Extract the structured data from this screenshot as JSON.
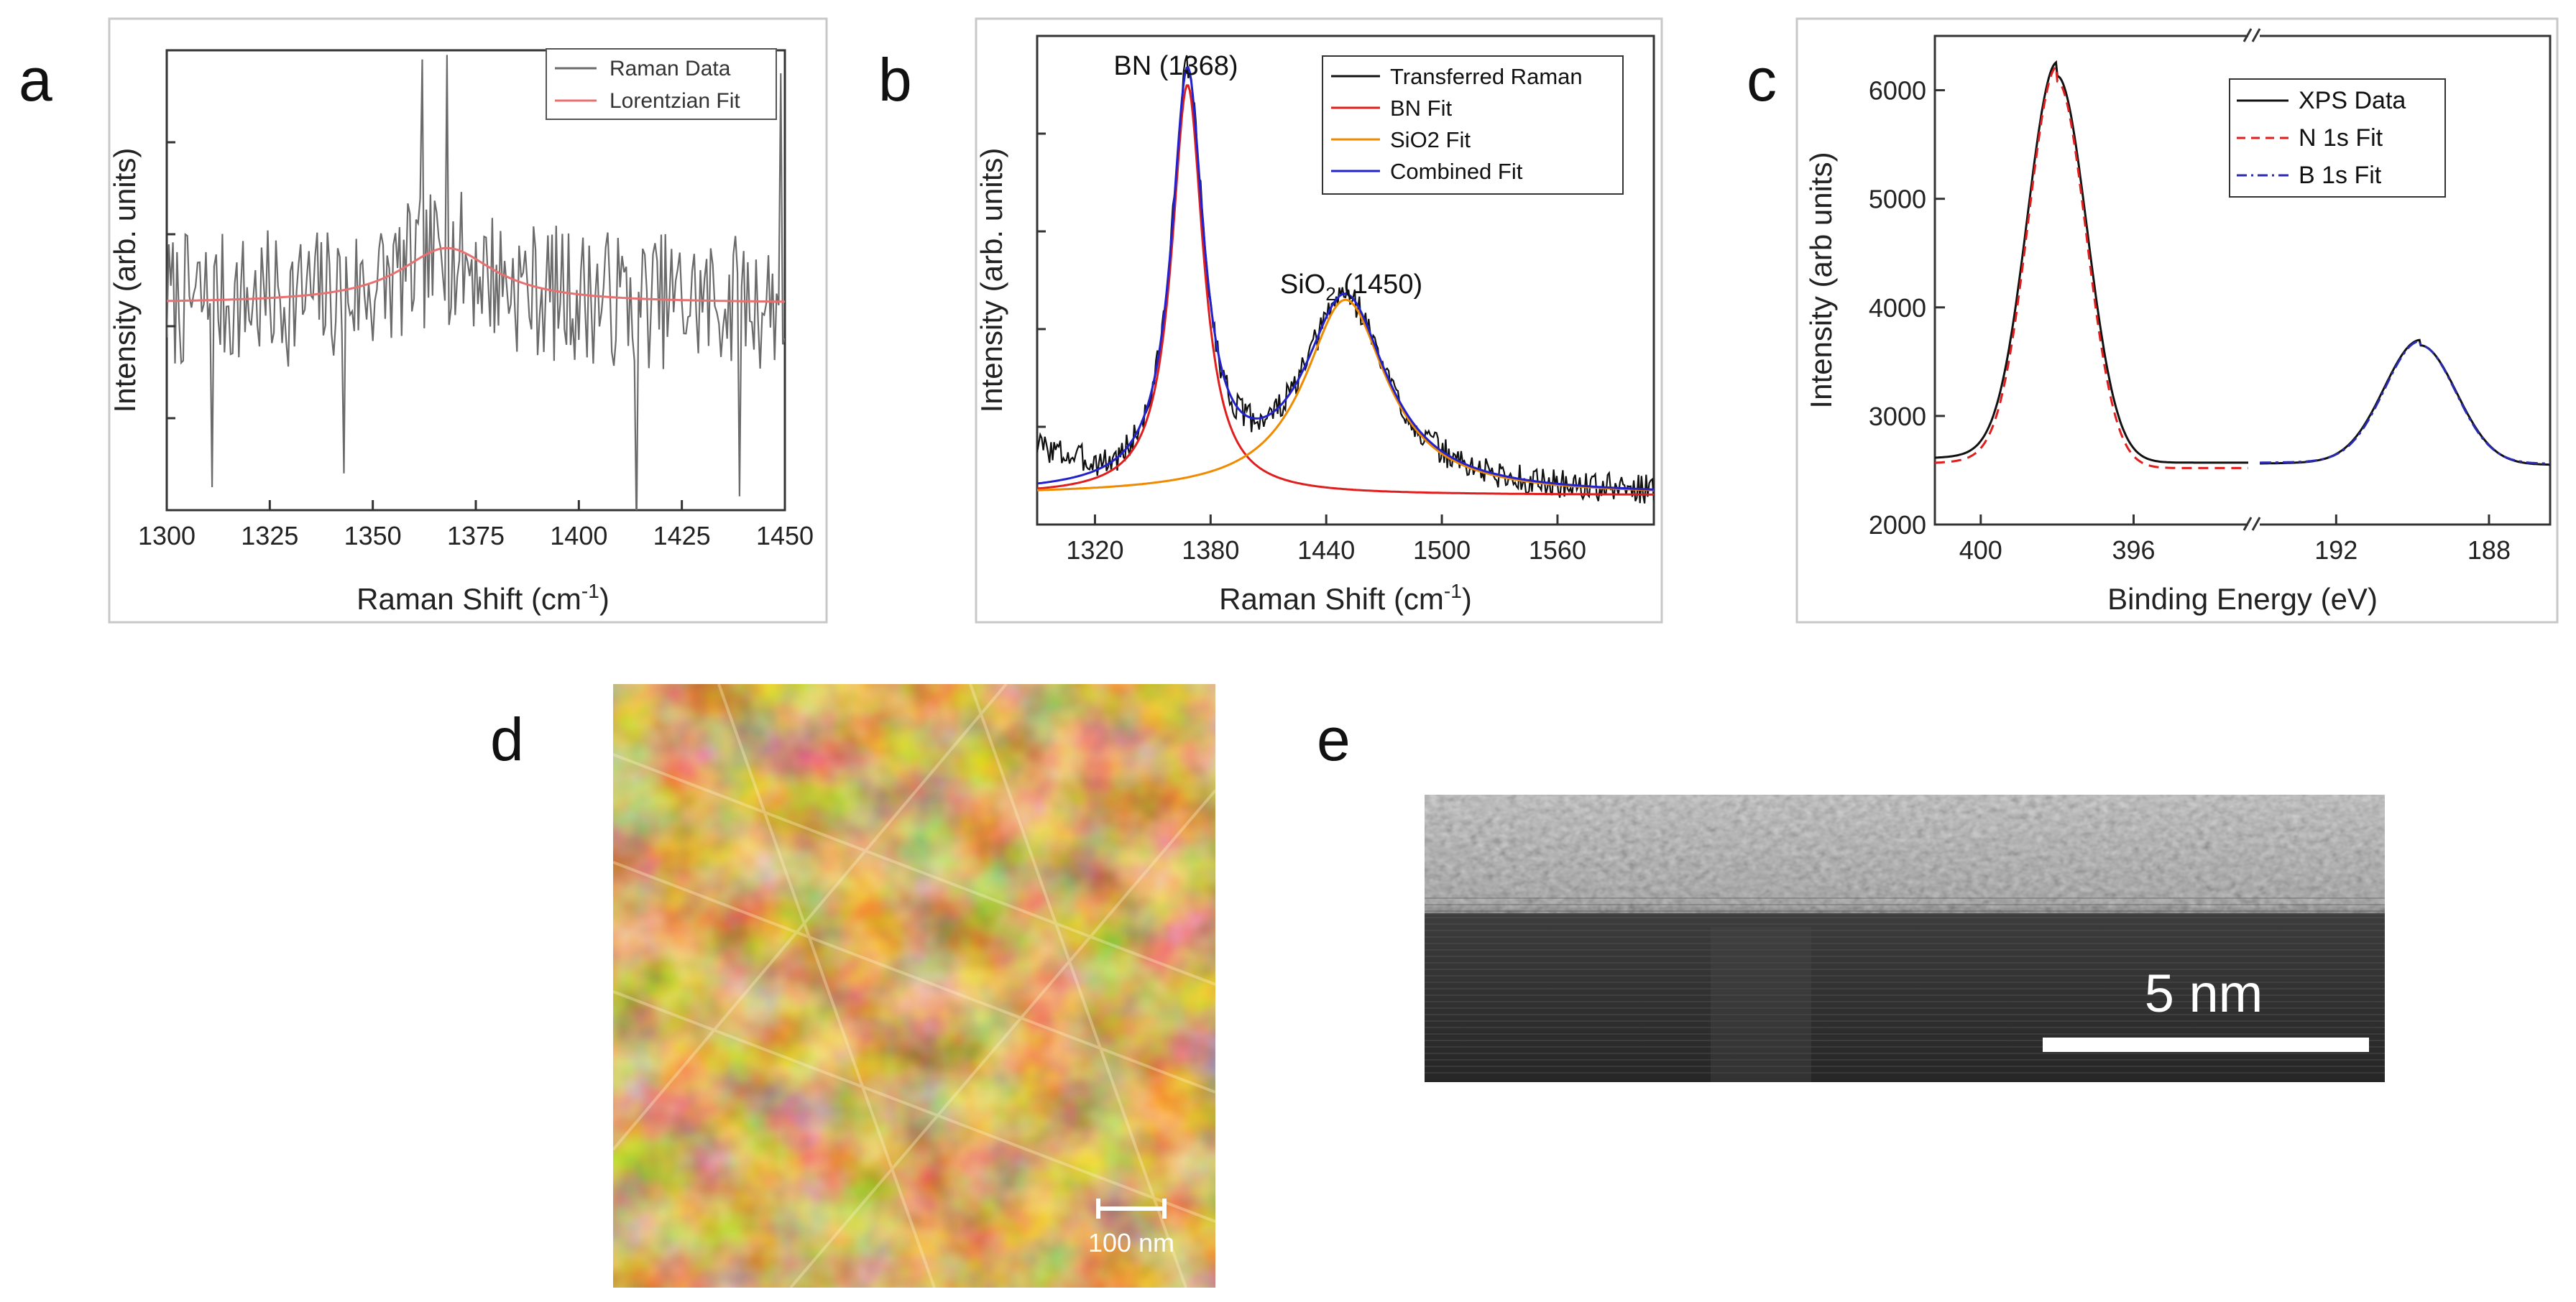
{
  "figure": {
    "panel_letters": [
      "a",
      "b",
      "c",
      "d",
      "e"
    ]
  },
  "chart_data": [
    {
      "panel": "a",
      "type": "line",
      "xlabel": "Raman Shift (cm",
      "xlabel_sup": "-1",
      "xlabel_end": ")",
      "ylabel": "Intensity (arb. units)",
      "xlim": [
        1300,
        1450
      ],
      "ylim": [
        0,
        1
      ],
      "x_ticks": [
        1300,
        1325,
        1350,
        1375,
        1400,
        1425,
        1450
      ],
      "legend": [
        "Raman Data",
        "Lorentzian Fit"
      ],
      "legend_position": "top-right",
      "series": [
        {
          "name": "Raman Data",
          "color": "#6b6b6b",
          "kind": "noisy",
          "baseline": 0.45,
          "noise": 0.15,
          "seed": 7,
          "n": 300,
          "peaks": [
            {
              "center": 1368,
              "amp": 0.1,
              "width": 14
            }
          ],
          "spikes": [
            {
              "x": 1362,
              "y": 0.98
            },
            {
              "x": 1368,
              "y": 0.99
            },
            {
              "x": 1343,
              "y": 0.08
            },
            {
              "x": 1414,
              "y": -0.05
            },
            {
              "x": 1311,
              "y": 0.05
            },
            {
              "x": 1439,
              "y": 0.03
            },
            {
              "x": 1449,
              "y": 0.95
            }
          ]
        },
        {
          "name": "Lorentzian Fit",
          "color": "#e87070",
          "kind": "lorentzian",
          "baseline": 0.45,
          "n": 300,
          "peaks": [
            {
              "center": 1368,
              "amp": 0.12,
              "width": 14
            }
          ]
        }
      ]
    },
    {
      "panel": "b",
      "type": "line",
      "xlabel": "Raman Shift (cm",
      "xlabel_sup": "-1",
      "xlabel_end": ")",
      "ylabel": "Intensity (arb. units)",
      "xlim": [
        1290,
        1610
      ],
      "ylim": [
        0,
        1
      ],
      "x_ticks": [
        1320,
        1380,
        1440,
        1500,
        1560
      ],
      "legend": [
        "Transferred Raman",
        "BN Fit",
        "SiO2 Fit",
        "Combined Fit"
      ],
      "legend_position": "top-right",
      "annotations": [
        {
          "text": "BN (1368)",
          "x": 1368,
          "y": 0.99
        },
        {
          "text": "SiO",
          "sub": "2",
          "after": " (1450)",
          "x": 1450,
          "y": 0.53
        }
      ],
      "series": [
        {
          "name": "Transferred Raman",
          "color": "#111111",
          "kind": "noisy",
          "baseline": 0.06,
          "noise": 0.03,
          "seed": 3,
          "n": 400,
          "peaks": [
            {
              "center": 1368,
              "amp": 0.84,
              "width": 10
            },
            {
              "center": 1450,
              "amp": 0.4,
              "width": 26
            }
          ],
          "extra": [
            {
              "from": 1290,
              "to": 1330,
              "add": 0.08
            }
          ]
        },
        {
          "name": "BN Fit",
          "color": "#e01e1e",
          "kind": "lorentzian",
          "baseline": 0.06,
          "n": 400,
          "peaks": [
            {
              "center": 1368,
              "amp": 0.84,
              "width": 10
            }
          ]
        },
        {
          "name": "SiO2 Fit",
          "color": "#f08a00",
          "kind": "lorentzian",
          "baseline": 0.06,
          "n": 400,
          "peaks": [
            {
              "center": 1450,
              "amp": 0.4,
              "width": 26
            }
          ]
        },
        {
          "name": "Combined Fit",
          "color": "#2222cc",
          "kind": "lorentzian",
          "baseline": 0.06,
          "n": 400,
          "peaks": [
            {
              "center": 1368,
              "amp": 0.84,
              "width": 10
            },
            {
              "center": 1450,
              "amp": 0.4,
              "width": 26
            }
          ]
        }
      ]
    },
    {
      "panel": "c",
      "type": "line",
      "xlabel": "Binding Energy (eV)",
      "ylabel": "Intensity (arb units)",
      "ylim": [
        2000,
        6500
      ],
      "y_ticks": [
        2000,
        3000,
        4000,
        5000,
        6000
      ],
      "x_segments": [
        {
          "xlim": [
            401.2,
            393.0
          ],
          "ticks": [
            400,
            396
          ]
        },
        {
          "xlim": [
            194.0,
            186.4
          ],
          "ticks": [
            192,
            188
          ]
        }
      ],
      "axis_break_label": "//",
      "legend": [
        "XPS Data",
        "N 1s Fit",
        "B 1s Fit"
      ],
      "legend_position": "top-right",
      "series": [
        {
          "name": "XPS Data",
          "color": "#111111",
          "style": "solid",
          "segments": [
            {
              "center": 398.0,
              "amp": 3560,
              "sigma": 0.78,
              "baseline": 2570,
              "shoulder": 130
            },
            {
              "center": 189.8,
              "amp": 1100,
              "sigma": 0.95,
              "baseline": 2550,
              "shoulder": 50
            }
          ]
        },
        {
          "name": "N 1s Fit",
          "color": "#e01e1e",
          "style": "dashed",
          "segments": [
            {
              "center": 398.0,
              "amp": 3560,
              "sigma": 0.76,
              "baseline": 2520,
              "shoulder": 140
            }
          ]
        },
        {
          "name": "B 1s Fit",
          "color": "#2a2ab0",
          "style": "dashdot",
          "segments": [
            null,
            {
              "center": 189.8,
              "amp": 1090,
              "sigma": 0.93,
              "baseline": 2560,
              "shoulder": 40
            }
          ]
        }
      ]
    }
  ],
  "images": {
    "afm_scale_label": "100 nm",
    "tem_scale_label": "5 nm"
  },
  "colors": {
    "afm_dark": "#3a1400",
    "afm_mid": "#c0651a",
    "afm_light": "#f6c36a",
    "tem_top": "#b8b8b8",
    "tem_bottom": "#2a2a2a"
  }
}
